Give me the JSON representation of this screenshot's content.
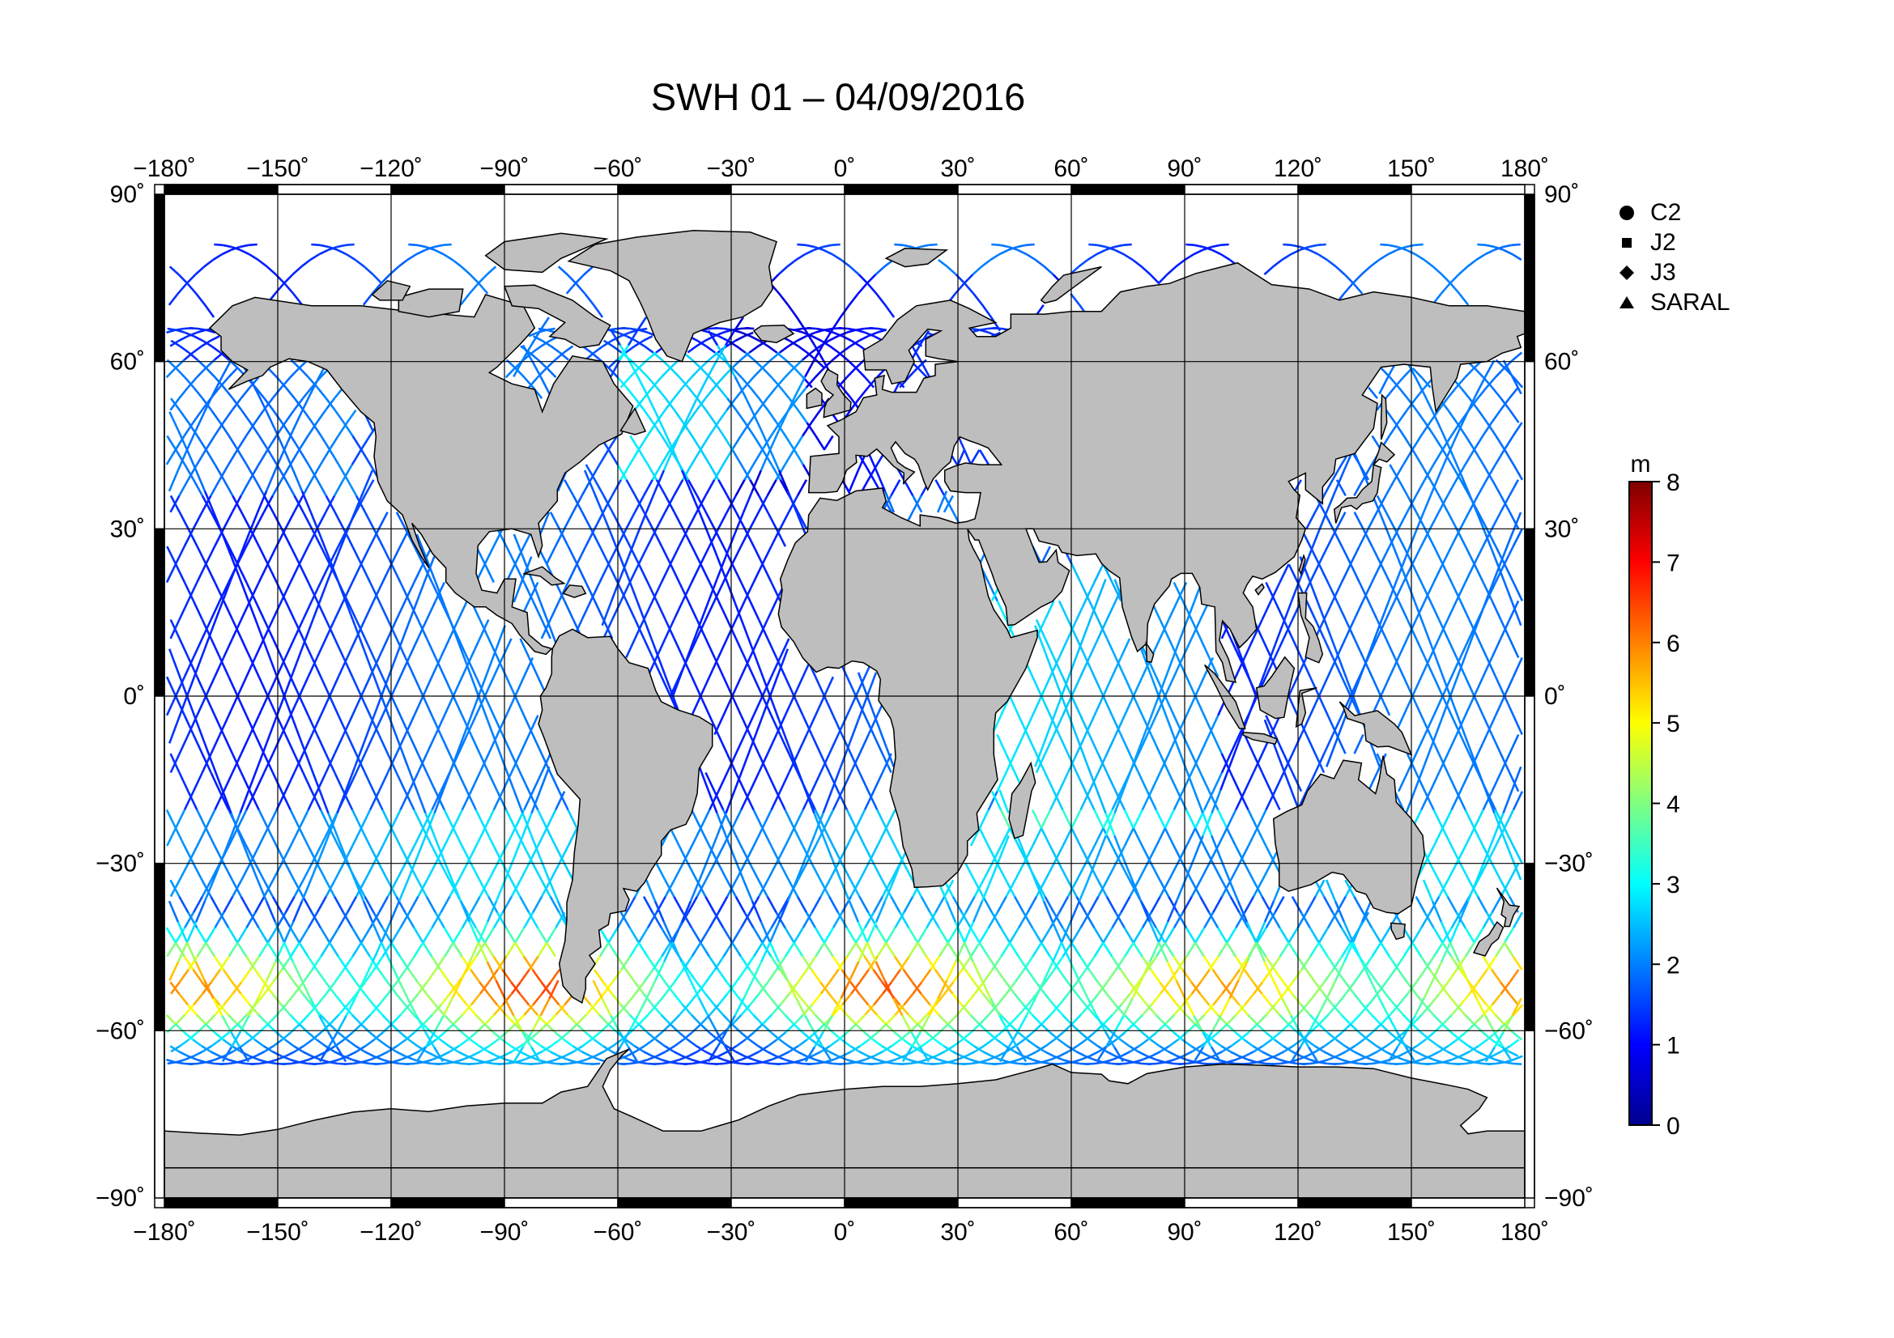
{
  "title": "SWH 01 – 04/09/2016",
  "map": {
    "type": "satellite-altimeter-track-map",
    "variable": "SWH",
    "projection": "equirectangular",
    "lon_range": [
      -180,
      180
    ],
    "lat_range": [
      -90,
      90
    ],
    "lon_ticks": [
      -180,
      -150,
      -120,
      -90,
      -60,
      -30,
      0,
      30,
      60,
      90,
      120,
      150,
      180
    ],
    "lat_ticks": [
      90,
      60,
      30,
      0,
      -30,
      -60,
      -90
    ],
    "lon_tick_labels": [
      "−180˚",
      "−150˚",
      "−120˚",
      "−90˚",
      "−60˚",
      "−30˚",
      "0˚",
      "30˚",
      "60˚",
      "90˚",
      "120˚",
      "150˚",
      "180˚"
    ],
    "lat_tick_labels": [
      "90˚",
      "60˚",
      "30˚",
      "0˚",
      "−30˚",
      "−60˚",
      "−90˚"
    ],
    "grid": true,
    "land_color": "#bebebe",
    "ocean_color": "#ffffff"
  },
  "legend": {
    "placement": "top-right",
    "items": [
      {
        "label": "C2",
        "symbol": "circle"
      },
      {
        "label": "J2",
        "symbol": "square"
      },
      {
        "label": "J3",
        "symbol": "diamond"
      },
      {
        "label": "SARAL",
        "symbol": "triangle"
      }
    ]
  },
  "colorbar": {
    "unit": "m",
    "min": 0,
    "max": 8,
    "ticks": [
      "0",
      "1",
      "2",
      "3",
      "4",
      "5",
      "6",
      "7",
      "8"
    ],
    "colormap": [
      "#00008f",
      "#0000ff",
      "#0080ff",
      "#00ffff",
      "#80ff80",
      "#ffff00",
      "#ff8000",
      "#ff0000",
      "#800000"
    ]
  }
}
